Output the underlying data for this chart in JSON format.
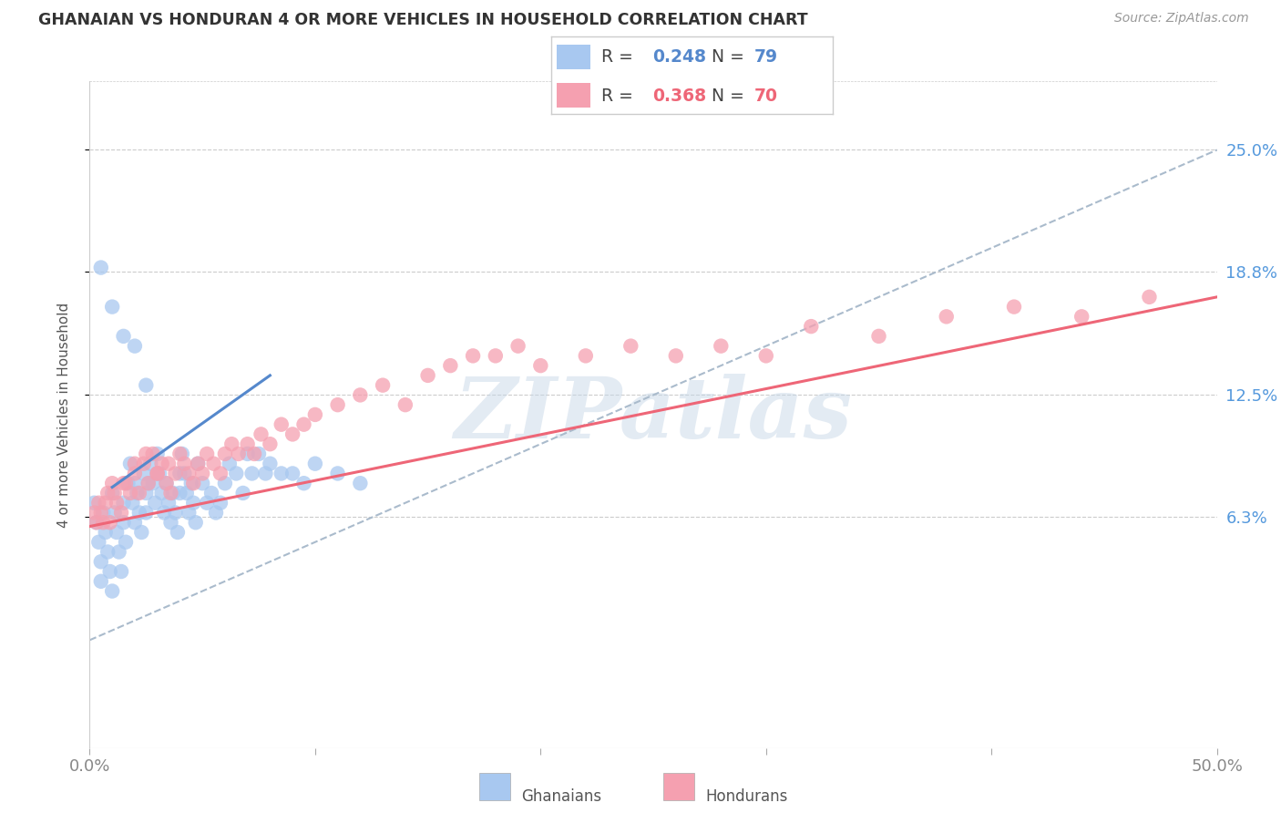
{
  "title": "GHANAIAN VS HONDURAN 4 OR MORE VEHICLES IN HOUSEHOLD CORRELATION CHART",
  "source": "Source: ZipAtlas.com",
  "ylabel": "4 or more Vehicles in Household",
  "ytick_labels": [
    "25.0%",
    "18.8%",
    "12.5%",
    "6.3%"
  ],
  "ytick_values": [
    0.25,
    0.188,
    0.125,
    0.063
  ],
  "xlim": [
    0.0,
    0.5
  ],
  "ylim": [
    -0.055,
    0.285
  ],
  "r_ghanaian": 0.248,
  "n_ghanaian": 79,
  "r_honduran": 0.368,
  "n_honduran": 70,
  "color_ghanaian": "#a8c8f0",
  "color_honduran": "#f5a0b0",
  "color_blue_line": "#5588cc",
  "color_pink_line": "#ee6677",
  "color_diag_line": "#aabbcc",
  "background_color": "#ffffff",
  "ghanaian_x": [
    0.002,
    0.003,
    0.004,
    0.005,
    0.005,
    0.006,
    0.007,
    0.008,
    0.009,
    0.01,
    0.01,
    0.011,
    0.012,
    0.013,
    0.014,
    0.015,
    0.015,
    0.016,
    0.017,
    0.018,
    0.019,
    0.02,
    0.02,
    0.021,
    0.022,
    0.023,
    0.024,
    0.025,
    0.025,
    0.026,
    0.027,
    0.028,
    0.029,
    0.03,
    0.03,
    0.031,
    0.032,
    0.033,
    0.034,
    0.035,
    0.036,
    0.037,
    0.038,
    0.039,
    0.04,
    0.04,
    0.041,
    0.042,
    0.043,
    0.044,
    0.045,
    0.046,
    0.047,
    0.048,
    0.05,
    0.052,
    0.054,
    0.056,
    0.058,
    0.06,
    0.062,
    0.065,
    0.068,
    0.07,
    0.072,
    0.075,
    0.078,
    0.08,
    0.085,
    0.09,
    0.095,
    0.1,
    0.11,
    0.12,
    0.005,
    0.01,
    0.015,
    0.02,
    0.025
  ],
  "ghanaian_y": [
    0.07,
    0.06,
    0.05,
    0.04,
    0.03,
    0.065,
    0.055,
    0.045,
    0.035,
    0.025,
    0.075,
    0.065,
    0.055,
    0.045,
    0.035,
    0.07,
    0.06,
    0.05,
    0.08,
    0.09,
    0.07,
    0.06,
    0.08,
    0.075,
    0.065,
    0.055,
    0.085,
    0.075,
    0.065,
    0.08,
    0.09,
    0.08,
    0.07,
    0.085,
    0.095,
    0.085,
    0.075,
    0.065,
    0.08,
    0.07,
    0.06,
    0.075,
    0.065,
    0.055,
    0.075,
    0.085,
    0.095,
    0.085,
    0.075,
    0.065,
    0.08,
    0.07,
    0.06,
    0.09,
    0.08,
    0.07,
    0.075,
    0.065,
    0.07,
    0.08,
    0.09,
    0.085,
    0.075,
    0.095,
    0.085,
    0.095,
    0.085,
    0.09,
    0.085,
    0.085,
    0.08,
    0.09,
    0.085,
    0.08,
    0.19,
    0.17,
    0.155,
    0.15,
    0.13
  ],
  "honduran_x": [
    0.002,
    0.004,
    0.006,
    0.008,
    0.01,
    0.012,
    0.014,
    0.016,
    0.018,
    0.02,
    0.022,
    0.024,
    0.026,
    0.028,
    0.03,
    0.032,
    0.034,
    0.036,
    0.038,
    0.04,
    0.042,
    0.044,
    0.046,
    0.048,
    0.05,
    0.052,
    0.055,
    0.058,
    0.06,
    0.063,
    0.066,
    0.07,
    0.073,
    0.076,
    0.08,
    0.085,
    0.09,
    0.095,
    0.1,
    0.11,
    0.12,
    0.13,
    0.14,
    0.15,
    0.16,
    0.17,
    0.18,
    0.19,
    0.2,
    0.22,
    0.24,
    0.26,
    0.28,
    0.3,
    0.32,
    0.35,
    0.38,
    0.41,
    0.44,
    0.47,
    0.003,
    0.005,
    0.007,
    0.009,
    0.011,
    0.015,
    0.02,
    0.025,
    0.03,
    0.035
  ],
  "honduran_y": [
    0.065,
    0.07,
    0.06,
    0.075,
    0.08,
    0.07,
    0.065,
    0.08,
    0.075,
    0.085,
    0.075,
    0.09,
    0.08,
    0.095,
    0.085,
    0.09,
    0.08,
    0.075,
    0.085,
    0.095,
    0.09,
    0.085,
    0.08,
    0.09,
    0.085,
    0.095,
    0.09,
    0.085,
    0.095,
    0.1,
    0.095,
    0.1,
    0.095,
    0.105,
    0.1,
    0.11,
    0.105,
    0.11,
    0.115,
    0.12,
    0.125,
    0.13,
    0.12,
    0.135,
    0.14,
    0.145,
    0.145,
    0.15,
    0.14,
    0.145,
    0.15,
    0.145,
    0.15,
    0.145,
    0.16,
    0.155,
    0.165,
    0.17,
    0.165,
    0.175,
    0.06,
    0.065,
    0.07,
    0.06,
    0.075,
    0.08,
    0.09,
    0.095,
    0.085,
    0.09
  ],
  "blue_line_x": [
    0.01,
    0.08
  ],
  "blue_line_y": [
    0.078,
    0.135
  ],
  "pink_line_x": [
    0.0,
    0.5
  ],
  "pink_line_y": [
    0.058,
    0.175
  ],
  "diag_line_x": [
    0.0,
    0.5
  ],
  "diag_line_y": [
    0.0,
    0.25
  ]
}
